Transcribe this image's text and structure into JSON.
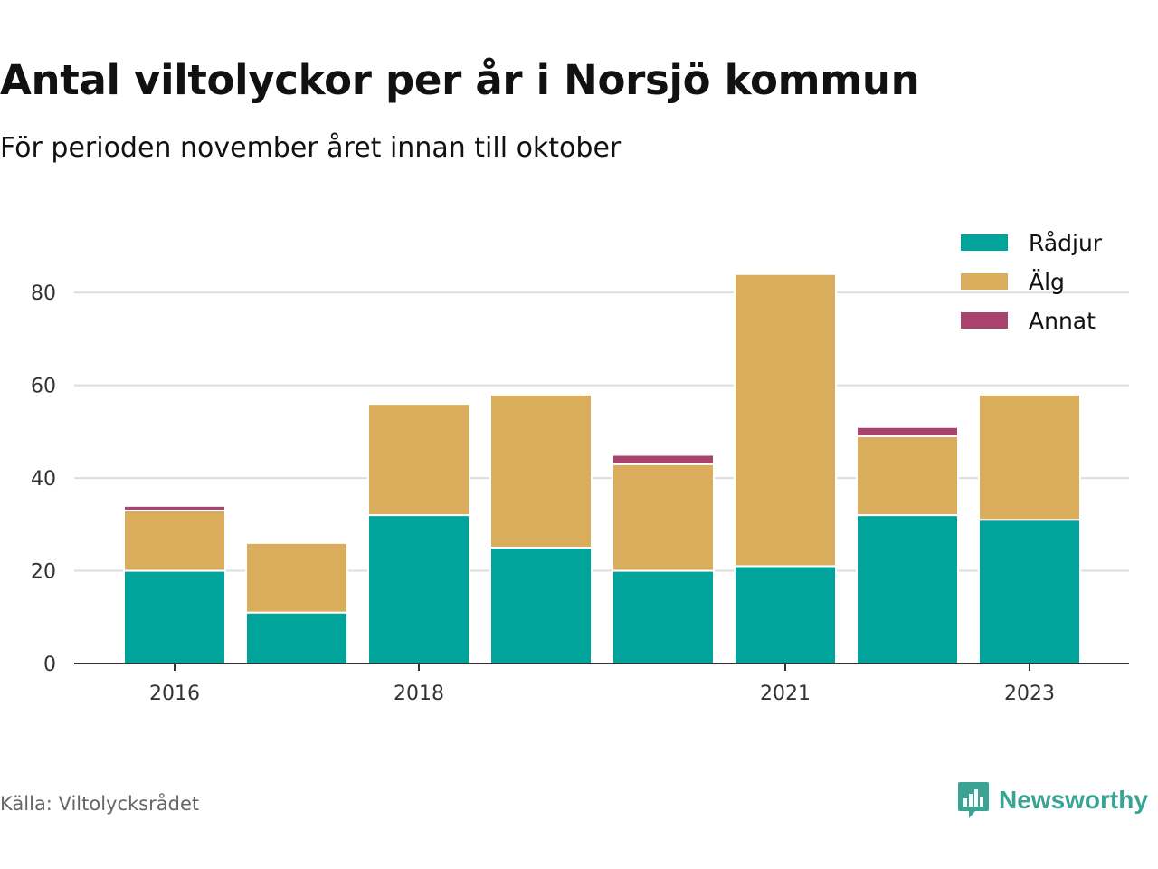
{
  "header": {
    "title": "Antal viltolyckor per år i Norsjö kommun",
    "subtitle": "För perioden november året innan till oktober"
  },
  "footer": {
    "source": "Källa: Viltolycksrådet",
    "brand": "Newsworthy",
    "brand_icon": "bar-chart-speech-bubble-icon"
  },
  "colors": {
    "radjur": "#00a49a",
    "alg": "#d9ad5b",
    "annat": "#a8436e",
    "grid": "#dddddd",
    "axis": "#333333",
    "brand": "#3aa393"
  },
  "chart_data": {
    "type": "bar",
    "stacked": true,
    "categories": [
      "2016",
      "2017",
      "2018",
      "2019",
      "2020",
      "2021",
      "2022",
      "2023"
    ],
    "x_tick_labels": [
      "2016",
      "",
      "2018",
      "",
      "",
      "2021",
      "",
      "2023"
    ],
    "series": [
      {
        "name": "Rådjur",
        "color": "#00a49a",
        "values": [
          20,
          11,
          32,
          25,
          20,
          21,
          32,
          31
        ]
      },
      {
        "name": "Älg",
        "color": "#d9ad5b",
        "values": [
          13,
          15,
          24,
          33,
          23,
          63,
          17,
          27
        ]
      },
      {
        "name": "Annat",
        "color": "#a8436e",
        "values": [
          1,
          0,
          0,
          0,
          2,
          0,
          2,
          0
        ]
      }
    ],
    "ylim": [
      0,
      90
    ],
    "y_ticks": [
      0,
      20,
      40,
      60,
      80
    ],
    "grid": true,
    "legend_position": "top-right"
  }
}
